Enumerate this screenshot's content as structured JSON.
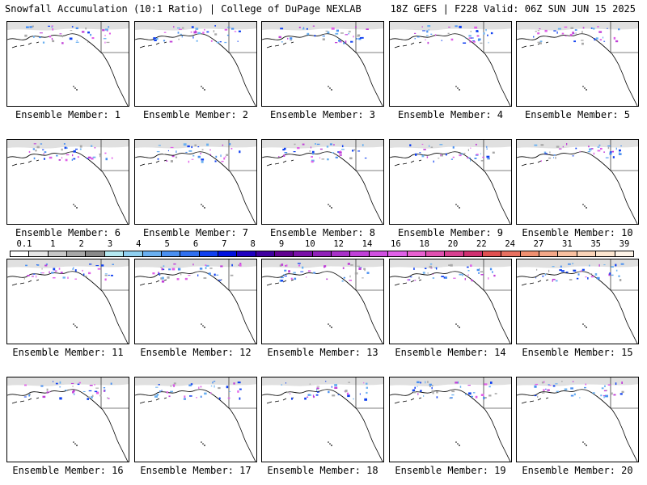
{
  "header": {
    "left_title": "Snowfall Accumulation (10:1 Ratio) | College of DuPage NEXLAB",
    "right_title": "18Z GEFS | F228 Valid: 06Z SUN JUN 15 2025"
  },
  "chart_data": {
    "type": "heatmap",
    "title": "Snowfall Accumulation (10:1 Ratio) | College of DuPage NEXLAB",
    "subtitle": "18Z GEFS | F228 Valid: 06Z SUN JUN 15 2025",
    "panels": [
      {
        "label": "Ensemble Member: 1"
      },
      {
        "label": "Ensemble Member: 2"
      },
      {
        "label": "Ensemble Member: 3"
      },
      {
        "label": "Ensemble Member: 4"
      },
      {
        "label": "Ensemble Member: 5"
      },
      {
        "label": "Ensemble Member: 6"
      },
      {
        "label": "Ensemble Member: 7"
      },
      {
        "label": "Ensemble Member: 8"
      },
      {
        "label": "Ensemble Member: 9"
      },
      {
        "label": "Ensemble Member: 10"
      },
      {
        "label": "Ensemble Member: 11"
      },
      {
        "label": "Ensemble Member: 12"
      },
      {
        "label": "Ensemble Member: 13"
      },
      {
        "label": "Ensemble Member: 14"
      },
      {
        "label": "Ensemble Member: 15"
      },
      {
        "label": "Ensemble Member: 16"
      },
      {
        "label": "Ensemble Member: 17"
      },
      {
        "label": "Ensemble Member: 18"
      },
      {
        "label": "Ensemble Member: 19"
      },
      {
        "label": "Ensemble Member: 20"
      }
    ],
    "colorbar": {
      "tick_labels": [
        "0.1",
        "1",
        "2",
        "3",
        "4",
        "5",
        "6",
        "7",
        "8",
        "9",
        "10",
        "12",
        "14",
        "16",
        "18",
        "20",
        "22",
        "24",
        "27",
        "31",
        "35",
        "39"
      ],
      "colors": [
        "#ffffff",
        "#e6e6e6",
        "#c8c8c8",
        "#a8a8a8",
        "#8a8a8a",
        "#b4e8f0",
        "#8fd0f0",
        "#6ab0f0",
        "#4a90f0",
        "#3070f0",
        "#1040f0",
        "#0010e0",
        "#2000c0",
        "#4000a0",
        "#600090",
        "#7a10a8",
        "#9020b8",
        "#a830c8",
        "#c040d8",
        "#d050e0",
        "#e060e8",
        "#e860d0",
        "#e050b0",
        "#d84090",
        "#d03070",
        "#e05050",
        "#e87060",
        "#f09070",
        "#f4a888",
        "#f8c0a0",
        "#fad4b8",
        "#fce6d0",
        "#fef4e8"
      ]
    }
  }
}
